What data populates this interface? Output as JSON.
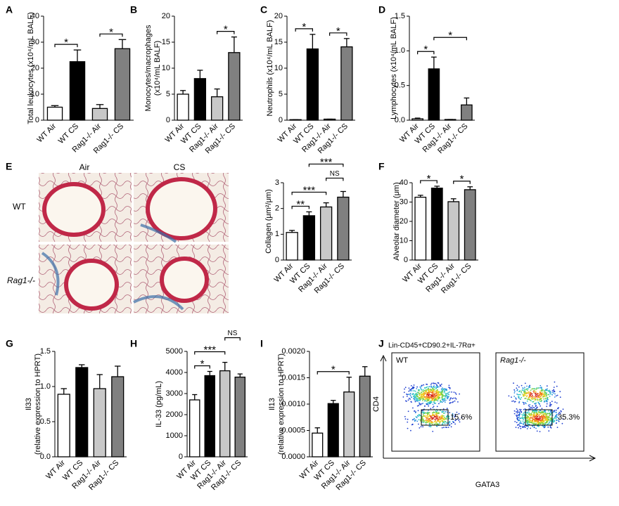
{
  "chart_data": [
    {
      "type": "bar",
      "panel": "A",
      "ylabel": [
        "Total leukocytes (x10⁴/mL BALF)"
      ],
      "categories": [
        "WT Air",
        "WT CS",
        "Rag1-/- Air",
        "Rag1-/- CS"
      ],
      "values": [
        5.0,
        22.5,
        4.5,
        27.5
      ],
      "errors": [
        0.6,
        4.5,
        1.5,
        3.5
      ],
      "colors": [
        "#ffffff",
        "#000000",
        "#c8c8c8",
        "#808080"
      ],
      "ylim": [
        0,
        40
      ],
      "yticks": [
        0,
        10,
        20,
        30,
        40
      ],
      "annotations": [
        {
          "pair": [
            0,
            1
          ],
          "label": "*"
        },
        {
          "pair": [
            2,
            3
          ],
          "label": "*"
        }
      ]
    },
    {
      "type": "bar",
      "panel": "B",
      "ylabel": [
        "Monocytes/macrophages",
        "(x10⁴/mL BALF)"
      ],
      "categories": [
        "WT Air",
        "WT CS",
        "Rag1-/- Air",
        "Rag1-/- CS"
      ],
      "values": [
        5.0,
        8.0,
        4.5,
        13.0
      ],
      "errors": [
        0.7,
        1.6,
        1.5,
        3.0
      ],
      "colors": [
        "#ffffff",
        "#000000",
        "#c8c8c8",
        "#808080"
      ],
      "ylim": [
        0,
        20
      ],
      "yticks": [
        0,
        5,
        10,
        15,
        20
      ],
      "annotations": [
        {
          "pair": [
            2,
            3
          ],
          "label": "*"
        }
      ]
    },
    {
      "type": "bar",
      "panel": "C",
      "ylabel": [
        "Neutrophils (x10⁴/mL BALF)"
      ],
      "categories": [
        "WT Air",
        "WT CS",
        "Rag1-/- Air",
        "Rag1-/- CS"
      ],
      "values": [
        0.1,
        13.7,
        0.2,
        14.1
      ],
      "errors": [
        0,
        2.8,
        0,
        1.6
      ],
      "colors": [
        "#ffffff",
        "#000000",
        "#c8c8c8",
        "#808080"
      ],
      "ylim": [
        0,
        20
      ],
      "yticks": [
        0,
        5,
        10,
        15,
        20
      ],
      "annotations": [
        {
          "pair": [
            0,
            1
          ],
          "label": "*"
        },
        {
          "pair": [
            2,
            3
          ],
          "label": "*"
        }
      ]
    },
    {
      "type": "bar",
      "panel": "D",
      "ylabel": [
        "Lymphocytes (x10⁴/mL BALF)"
      ],
      "categories": [
        "WT Air",
        "WT CS",
        "Rag1-/- Air",
        "Rag1-/- CS"
      ],
      "values": [
        0.02,
        0.74,
        0.01,
        0.22
      ],
      "errors": [
        0.01,
        0.17,
        0,
        0.1
      ],
      "colors": [
        "#ffffff",
        "#000000",
        "#c8c8c8",
        "#808080"
      ],
      "ylim": [
        0,
        1.5
      ],
      "yticks": [
        {
          "value": 0,
          "label": "0.0"
        },
        {
          "value": 0.5,
          "label": "0.5"
        },
        {
          "value": 1,
          "label": "1.0"
        },
        {
          "value": 1.5,
          "label": "1.5"
        }
      ],
      "annotations": [
        {
          "pair": [
            0,
            1
          ],
          "label": "*"
        },
        {
          "pair": [
            1,
            3
          ],
          "label": "*"
        }
      ]
    },
    {
      "type": "bar",
      "ylabel": [
        "Collagen (μm²/μm)"
      ],
      "categories": [
        "WT Air",
        "WT CS",
        "Rag1-/- Air",
        "Rag1-/- CS"
      ],
      "values": [
        1.07,
        1.72,
        2.06,
        2.44
      ],
      "errors": [
        0.08,
        0.15,
        0.16,
        0.22
      ],
      "colors": [
        "#ffffff",
        "#000000",
        "#c8c8c8",
        "#808080"
      ],
      "ylim": [
        0,
        3
      ],
      "yticks": [
        0,
        1,
        2,
        3
      ],
      "annotations": [
        {
          "pair": [
            0,
            1
          ],
          "label": "**"
        },
        {
          "pair": [
            0,
            2
          ],
          "label": "***"
        },
        {
          "pair": [
            2,
            3
          ],
          "label": "NS"
        },
        {
          "pair": [
            1,
            3
          ],
          "label": "***"
        }
      ]
    },
    {
      "type": "bar",
      "panel": "F",
      "ylabel": [
        "Alveolar diameter (μm)"
      ],
      "categories": [
        "WT Air",
        "WT CS",
        "Rag1-/- Air",
        "Rag1-/- CS"
      ],
      "values": [
        32.5,
        37.2,
        30.2,
        36.4
      ],
      "errors": [
        1.0,
        1.0,
        1.5,
        1.5
      ],
      "colors": [
        "#ffffff",
        "#000000",
        "#c8c8c8",
        "#808080"
      ],
      "ylim": [
        0,
        40
      ],
      "yticks": [
        0,
        10,
        20,
        30,
        40
      ],
      "annotations": [
        {
          "pair": [
            0,
            1
          ],
          "label": "*"
        },
        {
          "pair": [
            2,
            3
          ],
          "label": "*"
        }
      ]
    },
    {
      "type": "bar",
      "panel": "G",
      "ylabel": [
        "Il33",
        "(relative expression to HPRT)"
      ],
      "categories": [
        "WT Air",
        "WT CS",
        "Rag1-/- Air",
        "Rag1-/- CS"
      ],
      "values": [
        0.89,
        1.27,
        0.97,
        1.14
      ],
      "errors": [
        0.08,
        0.04,
        0.2,
        0.15
      ],
      "colors": [
        "#ffffff",
        "#000000",
        "#c8c8c8",
        "#808080"
      ],
      "ylim": [
        0,
        1.5
      ],
      "yticks": [
        {
          "value": 0,
          "label": "0.0"
        },
        {
          "value": 0.5,
          "label": "0.5"
        },
        {
          "value": 1,
          "label": "1.0"
        },
        {
          "value": 1.5,
          "label": "1.5"
        }
      ],
      "annotations": []
    },
    {
      "type": "bar",
      "panel": "H",
      "ylabel": [
        "IL-33 (pg/mL)"
      ],
      "categories": [
        "WT Air",
        "WT CS",
        "Rag1-/- Air",
        "Rag1-/- CS"
      ],
      "values": [
        2700,
        3850,
        4080,
        3780
      ],
      "errors": [
        250,
        200,
        400,
        150
      ],
      "colors": [
        "#ffffff",
        "#000000",
        "#c8c8c8",
        "#808080"
      ],
      "ylim": [
        0,
        5000
      ],
      "yticks": [
        0,
        1000,
        2000,
        3000,
        4000,
        5000
      ],
      "annotations": [
        {
          "pair": [
            0,
            1
          ],
          "label": "*"
        },
        {
          "pair": [
            0,
            2
          ],
          "label": "***"
        },
        {
          "pair": [
            2,
            3
          ],
          "label": "NS"
        }
      ]
    },
    {
      "type": "bar",
      "panel": "I",
      "ylabel": [
        "Il13",
        "(relative expression to HPRT)"
      ],
      "categories": [
        "WT Air",
        "WT CS",
        "Rag1-/- Air",
        "Rag1-/- CS"
      ],
      "values": [
        0.00045,
        0.00101,
        0.00123,
        0.00153
      ],
      "errors": [
        0.0001,
        6e-05,
        0.00028,
        0.00018
      ],
      "colors": [
        "#ffffff",
        "#000000",
        "#c8c8c8",
        "#808080"
      ],
      "ylim": [
        0,
        0.002
      ],
      "yticks": [
        {
          "value": 0,
          "label": "0.0000"
        },
        {
          "value": 0.0005,
          "label": "0.0005"
        },
        {
          "value": 0.001,
          "label": "0.0010"
        },
        {
          "value": 0.0015,
          "label": "0.0015"
        },
        {
          "value": 0.002,
          "label": "0.0020"
        }
      ],
      "annotations": [
        {
          "pair": [
            0,
            2
          ],
          "label": "*"
        }
      ]
    }
  ],
  "panel_e_images": {
    "panel": "E",
    "columns": [
      "Air",
      "CS"
    ],
    "rows": [
      "WT",
      "Rag1-/-"
    ]
  },
  "panel_j": {
    "panel": "J",
    "title": "Lin-CD45+CD90.2+IL-7Rα+",
    "y_axis": "CD4",
    "x_axis": "GATA3",
    "plots": [
      {
        "label": "WT",
        "gate_percent": "15.6%"
      },
      {
        "label": "Rag1-/-",
        "gate_percent": "35.3%"
      }
    ]
  }
}
